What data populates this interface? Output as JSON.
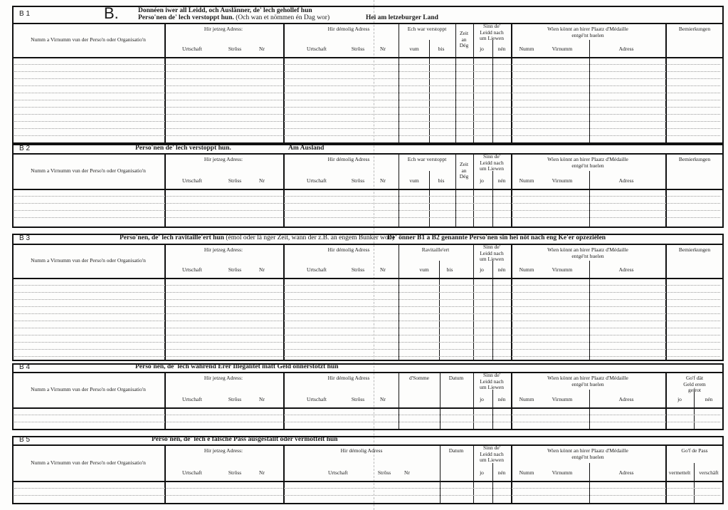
{
  "common": {
    "name": "Numm a Virnumm vun der Perso'n oder Organisatio'n",
    "current_address": "Hir jetzeg Adress:",
    "former_address": "Hir démolig Adress",
    "locality": "Urtschaft",
    "street": "Strôss",
    "nr": "Nr",
    "from": "vum",
    "to": "bis",
    "time": "Zeit\nan\nDég",
    "survived": "Sinn  de'\nLeidd   nach\num Liewen",
    "yes": "jo",
    "no": "nén",
    "medal": "Wien  könnt  an  hirer  Plaatz  d'Médaille\nentgé'nt huelen",
    "surname": "Numm",
    "firstname": "Virnumm",
    "address": "Adress",
    "remarks": "Bemierkungen",
    "date": "Datum"
  },
  "sections": [
    {
      "label": "B 1",
      "letter": "B.",
      "title": "Donnéen iwer all Leidd, och Auslänner, de' lech gehollef hun",
      "title2": "Perso'nen de' lech verstoppt hun.",
      "title2_note": "(Och wan et nömmen én Dag wor)",
      "region": "Hei am letzeburger Land",
      "period_label": "Ech war verstoppt"
    },
    {
      "label": "B 2",
      "title": "Perso'nen de' lech verstoppt hun.",
      "region": "Am Ausland",
      "period_label": "Ech war verstoppt"
    },
    {
      "label": "B 3",
      "title": "Perso'nen, de' lech ravitaille'ert hun",
      "title_note": "(émol oder lä nger Zeit, wann der z.B. an engem Bunker wor.)",
      "note": "De' önner B1 a B2 genannte Perso'nen sin hei nöt nach eng Ke'er opzeziélen",
      "period_label": "Ravitaille'ert"
    },
    {
      "label": "B 4",
      "title": "Perso'nen, de' lech während Erer Illégalitét matt Geld önnerstötzt hun",
      "amount_label": "d'Somme",
      "last_col": "Go'f  dät\nGeld  erem  gefrot",
      "last_a": "jo",
      "last_b": "nén"
    },
    {
      "label": "B 5",
      "title": "Perso'nen, de' lech é falsche Pass ausgestallt oder  vermöttelt hun",
      "last_col": "Go'f de Pass",
      "last_a": "vermettelt",
      "last_b": "verschäft"
    }
  ]
}
